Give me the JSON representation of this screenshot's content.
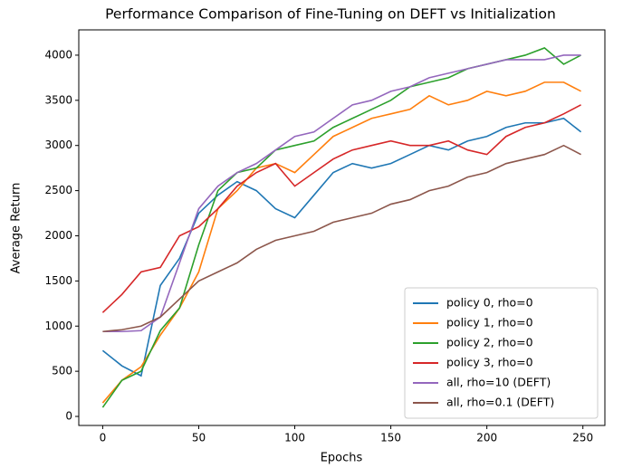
{
  "chart_data": {
    "type": "line",
    "title": "Performance Comparison of Fine-Tuning on DEFT vs Initialization",
    "x_label": "Epochs",
    "y_label": "Average Return",
    "x": [
      0,
      10,
      20,
      30,
      40,
      50,
      60,
      70,
      80,
      90,
      100,
      110,
      120,
      130,
      140,
      150,
      160,
      170,
      180,
      190,
      200,
      210,
      220,
      230,
      240,
      249
    ],
    "series": [
      {
        "name": "policy 0, rho=0",
        "color": "#1f77b4",
        "values": [
          730,
          560,
          450,
          1450,
          1750,
          2250,
          2450,
          2600,
          2500,
          2300,
          2200,
          2450,
          2700,
          2800,
          2750,
          2800,
          2900,
          3000,
          2950,
          3050,
          3100,
          3200,
          3250,
          3250,
          3300,
          3150
        ]
      },
      {
        "name": "policy 1, rho=0",
        "color": "#ff7f0e",
        "values": [
          150,
          400,
          550,
          900,
          1200,
          1600,
          2300,
          2500,
          2750,
          2800,
          2700,
          2900,
          3100,
          3200,
          3300,
          3350,
          3400,
          3550,
          3450,
          3500,
          3600,
          3550,
          3600,
          3700,
          3700,
          3600
        ]
      },
      {
        "name": "policy 2, rho=0",
        "color": "#2ca02c",
        "values": [
          100,
          400,
          500,
          950,
          1200,
          1900,
          2500,
          2700,
          2750,
          2950,
          3000,
          3050,
          3200,
          3300,
          3400,
          3500,
          3650,
          3700,
          3750,
          3850,
          3900,
          3950,
          4000,
          4080,
          3900,
          4000
        ]
      },
      {
        "name": "policy 3, rho=0",
        "color": "#d62728",
        "values": [
          1150,
          1350,
          1600,
          1650,
          2000,
          2100,
          2300,
          2550,
          2700,
          2800,
          2550,
          2700,
          2850,
          2950,
          3000,
          3050,
          3000,
          3000,
          3050,
          2950,
          2900,
          3100,
          3200,
          3250,
          3350,
          3450
        ]
      },
      {
        "name": "all, rho=10 (DEFT)",
        "color": "#9467bd",
        "values": [
          940,
          940,
          950,
          1100,
          1700,
          2300,
          2550,
          2700,
          2800,
          2950,
          3100,
          3150,
          3300,
          3450,
          3500,
          3600,
          3650,
          3750,
          3800,
          3850,
          3900,
          3950,
          3950,
          3950,
          4000,
          4000
        ]
      },
      {
        "name": "all, rho=0.1 (DEFT)",
        "color": "#8c564b",
        "values": [
          940,
          960,
          1000,
          1100,
          1300,
          1500,
          1600,
          1700,
          1850,
          1950,
          2000,
          2050,
          2150,
          2200,
          2250,
          2350,
          2400,
          2500,
          2550,
          2650,
          2700,
          2800,
          2850,
          2900,
          3000,
          2900
        ]
      }
    ],
    "xlim": [
      -12.45,
      261.45
    ],
    "ylim": [
      -100,
      4280
    ],
    "xticks": [
      0,
      50,
      100,
      150,
      200,
      250
    ],
    "yticks": [
      0,
      500,
      1000,
      1500,
      2000,
      2500,
      3000,
      3500,
      4000
    ],
    "grid": false,
    "legend": "lower right"
  }
}
